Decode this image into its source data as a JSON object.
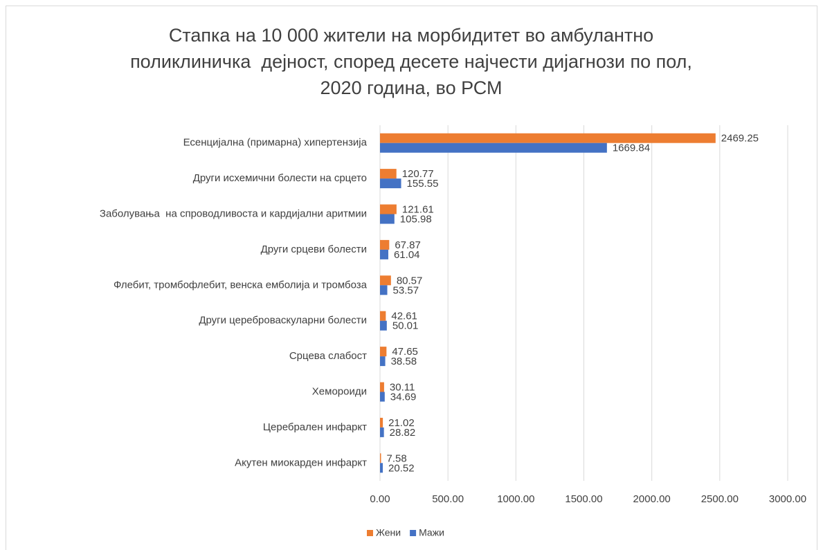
{
  "chart_data": {
    "type": "bar",
    "orientation": "horizontal",
    "title": [
      "Стапка на 10 000 жители на морбидитет во амбулантно",
      "поликлиничка  дејност, според десете најчести дијагнози по пол,",
      "2020 година, во РСМ"
    ],
    "categories": [
      "Есенцијална (примарна) хипертензија",
      "Други исхемични болести на срцето",
      "Заболувања  на спроводливоста и кардијални аритмии",
      "Други срцеви болести",
      "Флебит, тромбофлебит, венска емболија и тромбоза",
      "Други цереброваскуларни болести",
      "Срцева слабост",
      "Хемороиди",
      "Церебрален инфаркт",
      "Акутен миокарден инфаркт"
    ],
    "series": [
      {
        "name": "Жени",
        "color": "#ed7d31",
        "values": [
          2469.25,
          120.77,
          121.61,
          67.87,
          80.57,
          42.61,
          47.65,
          30.11,
          21.02,
          7.58
        ]
      },
      {
        "name": "Мажи",
        "color": "#4472c4",
        "values": [
          1669.84,
          155.55,
          105.98,
          61.04,
          53.57,
          50.01,
          38.58,
          34.69,
          28.82,
          20.52
        ]
      }
    ],
    "xlim": [
      0,
      3000
    ],
    "xticks": [
      {
        "value": 0,
        "label": "0.00"
      },
      {
        "value": 500,
        "label": "500.00"
      },
      {
        "value": 1000,
        "label": "1000.00"
      },
      {
        "value": 1500,
        "label": "1500.00"
      },
      {
        "value": 2000,
        "label": "2000.00"
      },
      {
        "value": 2500,
        "label": "2500.00"
      },
      {
        "value": 3000,
        "label": "3000.00"
      }
    ],
    "grid": true,
    "legend": "bottom"
  }
}
